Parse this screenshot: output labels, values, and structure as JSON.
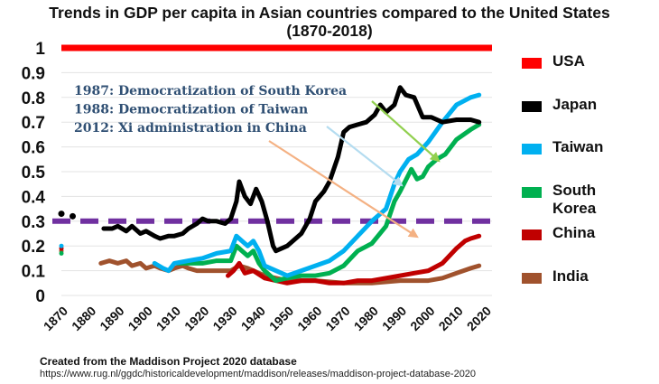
{
  "chart_data": {
    "type": "line",
    "title": "Trends in GDP per capita in Asian countries compared to the United States",
    "subtitle": "(1870-2018)",
    "xlabel": "",
    "ylabel": "",
    "xlim": [
      1870,
      2020
    ],
    "ylim": [
      0,
      1
    ],
    "grid": true,
    "legend_placement": "right",
    "x_ticks": [
      "1870",
      "1880",
      "1890",
      "1900",
      "1910",
      "1920",
      "1930",
      "1940",
      "1950",
      "1960",
      "1970",
      "1980",
      "1990",
      "2000",
      "2010",
      "2020"
    ],
    "y_ticks": [
      "0",
      "0.1",
      "0.2",
      "0.3",
      "0.4",
      "0.5",
      "0.6",
      "0.7",
      "0.8",
      "0.9",
      "1"
    ],
    "reference_line": {
      "value": 0.3,
      "color": "#7030a0",
      "style": "dashed"
    },
    "series": [
      {
        "name": "USA",
        "color": "#ff0000",
        "width": 7,
        "points": [
          [
            1870,
            1.0
          ],
          [
            2018,
            1.0
          ]
        ]
      },
      {
        "name": "Japan",
        "color": "#000000",
        "width": 5,
        "dots": [
          [
            1870,
            0.33
          ],
          [
            1874,
            0.32
          ]
        ],
        "points": [
          [
            1885,
            0.27
          ],
          [
            1888,
            0.27
          ],
          [
            1890,
            0.28
          ],
          [
            1893,
            0.26
          ],
          [
            1895,
            0.28
          ],
          [
            1898,
            0.25
          ],
          [
            1900,
            0.26
          ],
          [
            1903,
            0.24
          ],
          [
            1905,
            0.23
          ],
          [
            1908,
            0.24
          ],
          [
            1910,
            0.24
          ],
          [
            1913,
            0.25
          ],
          [
            1915,
            0.27
          ],
          [
            1918,
            0.29
          ],
          [
            1920,
            0.31
          ],
          [
            1922,
            0.3
          ],
          [
            1925,
            0.3
          ],
          [
            1928,
            0.29
          ],
          [
            1930,
            0.31
          ],
          [
            1932,
            0.38
          ],
          [
            1933,
            0.46
          ],
          [
            1935,
            0.4
          ],
          [
            1937,
            0.37
          ],
          [
            1939,
            0.43
          ],
          [
            1941,
            0.38
          ],
          [
            1943,
            0.3
          ],
          [
            1945,
            0.2
          ],
          [
            1946,
            0.18
          ],
          [
            1950,
            0.2
          ],
          [
            1955,
            0.25
          ],
          [
            1958,
            0.31
          ],
          [
            1960,
            0.38
          ],
          [
            1963,
            0.42
          ],
          [
            1965,
            0.46
          ],
          [
            1968,
            0.56
          ],
          [
            1970,
            0.66
          ],
          [
            1972,
            0.68
          ],
          [
            1975,
            0.69
          ],
          [
            1978,
            0.7
          ],
          [
            1981,
            0.73
          ],
          [
            1983,
            0.77
          ],
          [
            1985,
            0.74
          ],
          [
            1988,
            0.77
          ],
          [
            1990,
            0.84
          ],
          [
            1992,
            0.81
          ],
          [
            1995,
            0.8
          ],
          [
            1998,
            0.72
          ],
          [
            2001,
            0.72
          ],
          [
            2005,
            0.7
          ],
          [
            2010,
            0.71
          ],
          [
            2015,
            0.71
          ],
          [
            2018,
            0.7
          ]
        ]
      },
      {
        "name": "Taiwan",
        "color": "#00b0f0",
        "width": 5,
        "dots": [
          [
            1870,
            0.2
          ]
        ],
        "points": [
          [
            1903,
            0.13
          ],
          [
            1906,
            0.11
          ],
          [
            1908,
            0.1
          ],
          [
            1910,
            0.13
          ],
          [
            1915,
            0.14
          ],
          [
            1920,
            0.15
          ],
          [
            1925,
            0.17
          ],
          [
            1930,
            0.18
          ],
          [
            1932,
            0.24
          ],
          [
            1934,
            0.22
          ],
          [
            1936,
            0.2
          ],
          [
            1938,
            0.22
          ],
          [
            1940,
            0.18
          ],
          [
            1942,
            0.12
          ],
          [
            1950,
            0.08
          ],
          [
            1955,
            0.1
          ],
          [
            1960,
            0.12
          ],
          [
            1965,
            0.14
          ],
          [
            1970,
            0.18
          ],
          [
            1975,
            0.24
          ],
          [
            1980,
            0.3
          ],
          [
            1985,
            0.35
          ],
          [
            1988,
            0.45
          ],
          [
            1990,
            0.5
          ],
          [
            1993,
            0.55
          ],
          [
            1996,
            0.57
          ],
          [
            2000,
            0.62
          ],
          [
            2005,
            0.7
          ],
          [
            2010,
            0.77
          ],
          [
            2015,
            0.8
          ],
          [
            2018,
            0.81
          ]
        ]
      },
      {
        "name": "South Korea",
        "color": "#00b050",
        "width": 5,
        "dots": [
          [
            1870,
            0.17
          ]
        ],
        "points": [
          [
            1911,
            0.13
          ],
          [
            1915,
            0.13
          ],
          [
            1920,
            0.13
          ],
          [
            1925,
            0.14
          ],
          [
            1930,
            0.14
          ],
          [
            1932,
            0.2
          ],
          [
            1934,
            0.18
          ],
          [
            1936,
            0.16
          ],
          [
            1938,
            0.18
          ],
          [
            1940,
            0.13
          ],
          [
            1942,
            0.1
          ],
          [
            1946,
            0.06
          ],
          [
            1950,
            0.07
          ],
          [
            1955,
            0.08
          ],
          [
            1960,
            0.08
          ],
          [
            1965,
            0.09
          ],
          [
            1970,
            0.12
          ],
          [
            1975,
            0.18
          ],
          [
            1980,
            0.21
          ],
          [
            1985,
            0.28
          ],
          [
            1988,
            0.38
          ],
          [
            1990,
            0.42
          ],
          [
            1994,
            0.51
          ],
          [
            1996,
            0.47
          ],
          [
            1998,
            0.48
          ],
          [
            2000,
            0.52
          ],
          [
            2003,
            0.55
          ],
          [
            2006,
            0.57
          ],
          [
            2010,
            0.63
          ],
          [
            2015,
            0.67
          ],
          [
            2018,
            0.69
          ]
        ]
      },
      {
        "name": "China",
        "color": "#c00000",
        "width": 5,
        "dots": [
          [
            1870,
            0.19
          ]
        ],
        "points": [
          [
            1929,
            0.08
          ],
          [
            1931,
            0.1
          ],
          [
            1933,
            0.13
          ],
          [
            1935,
            0.09
          ],
          [
            1938,
            0.1
          ],
          [
            1942,
            0.07
          ],
          [
            1946,
            0.06
          ],
          [
            1950,
            0.05
          ],
          [
            1955,
            0.06
          ],
          [
            1960,
            0.06
          ],
          [
            1965,
            0.05
          ],
          [
            1970,
            0.05
          ],
          [
            1975,
            0.06
          ],
          [
            1980,
            0.06
          ],
          [
            1985,
            0.07
          ],
          [
            1990,
            0.08
          ],
          [
            1995,
            0.09
          ],
          [
            2000,
            0.1
          ],
          [
            2005,
            0.13
          ],
          [
            2010,
            0.19
          ],
          [
            2013,
            0.22
          ],
          [
            2015,
            0.23
          ],
          [
            2018,
            0.24
          ]
        ]
      },
      {
        "name": "India",
        "color": "#a0522d",
        "width": 5,
        "dots": [
          [
            1870,
            0.18
          ]
        ],
        "points": [
          [
            1884,
            0.13
          ],
          [
            1887,
            0.14
          ],
          [
            1890,
            0.13
          ],
          [
            1893,
            0.14
          ],
          [
            1895,
            0.12
          ],
          [
            1898,
            0.13
          ],
          [
            1900,
            0.11
          ],
          [
            1903,
            0.12
          ],
          [
            1905,
            0.11
          ],
          [
            1908,
            0.1
          ],
          [
            1910,
            0.11
          ],
          [
            1913,
            0.12
          ],
          [
            1915,
            0.11
          ],
          [
            1918,
            0.1
          ],
          [
            1920,
            0.1
          ],
          [
            1925,
            0.1
          ],
          [
            1930,
            0.1
          ],
          [
            1933,
            0.12
          ],
          [
            1936,
            0.11
          ],
          [
            1938,
            0.1
          ],
          [
            1942,
            0.08
          ],
          [
            1946,
            0.07
          ],
          [
            1950,
            0.06
          ],
          [
            1960,
            0.06
          ],
          [
            1970,
            0.05
          ],
          [
            1980,
            0.05
          ],
          [
            1990,
            0.06
          ],
          [
            2000,
            0.06
          ],
          [
            2005,
            0.07
          ],
          [
            2010,
            0.09
          ],
          [
            2015,
            0.11
          ],
          [
            2018,
            0.12
          ]
        ]
      }
    ],
    "annotations": [
      {
        "text": "1987: Democratization of South Korea",
        "color": "#92d050"
      },
      {
        "text": "1988: Democratization of Taiwan",
        "color": "#b4dcf0"
      },
      {
        "text": "2012: Xi administration in China",
        "color": "#f4b183"
      }
    ]
  },
  "footer": {
    "source": "Created from the Maddison Project 2020 database",
    "url": "https://www.rug.nl/ggdc/historicaldevelopment/maddison/releases/maddison-project-database-2020"
  }
}
